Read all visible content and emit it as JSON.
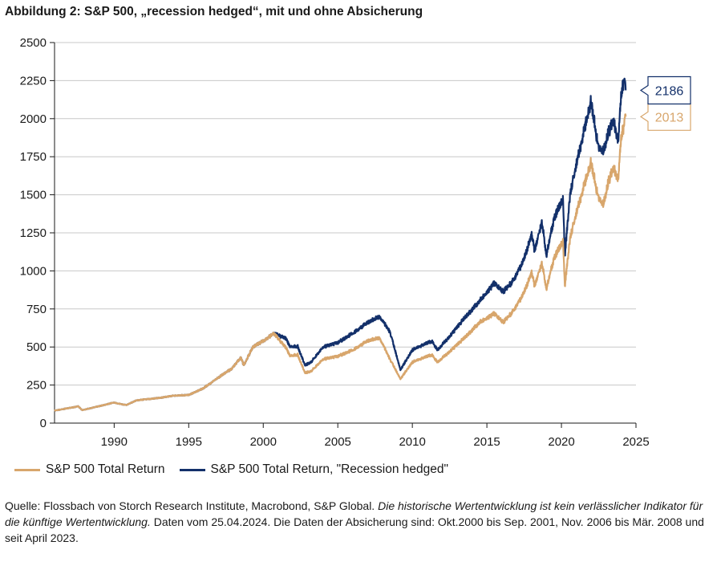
{
  "title": "Abbildung 2: S&P 500, „recession hedged“, mit und ohne Absicherung",
  "chart_data": {
    "type": "line",
    "title": "Abbildung 2: S&P 500, „recession hedged“, mit und ohne Absicherung",
    "xlabel": "",
    "ylabel": "",
    "xlim": [
      1986,
      2025
    ],
    "ylim": [
      0,
      2500
    ],
    "x_ticks": [
      1990,
      1995,
      2000,
      2005,
      2010,
      2015,
      2020,
      2025
    ],
    "y_ticks": [
      0,
      250,
      500,
      750,
      1000,
      1250,
      1500,
      1750,
      2000,
      2250,
      2500
    ],
    "grid": "horizontal",
    "legend": "bottom-left",
    "series": [
      {
        "name": "S&P 500 Total Return",
        "color": "#d8a66c",
        "end_label": "2013",
        "points": [
          [
            1986.0,
            82
          ],
          [
            1987.6,
            110
          ],
          [
            1987.85,
            85
          ],
          [
            1988.5,
            100
          ],
          [
            1990.0,
            135
          ],
          [
            1990.8,
            118
          ],
          [
            1991.5,
            150
          ],
          [
            1993.0,
            165
          ],
          [
            1994.0,
            180
          ],
          [
            1995.0,
            185
          ],
          [
            1996.0,
            230
          ],
          [
            1997.0,
            300
          ],
          [
            1997.9,
            360
          ],
          [
            1998.5,
            430
          ],
          [
            1998.7,
            380
          ],
          [
            1999.3,
            500
          ],
          [
            2000.0,
            540
          ],
          [
            2000.7,
            590
          ],
          [
            2001.5,
            500
          ],
          [
            2001.8,
            440
          ],
          [
            2002.3,
            450
          ],
          [
            2002.8,
            330
          ],
          [
            2003.2,
            340
          ],
          [
            2004.0,
            420
          ],
          [
            2005.0,
            440
          ],
          [
            2006.0,
            480
          ],
          [
            2007.0,
            540
          ],
          [
            2007.8,
            560
          ],
          [
            2008.5,
            420
          ],
          [
            2009.2,
            290
          ],
          [
            2010.0,
            400
          ],
          [
            2011.3,
            450
          ],
          [
            2011.7,
            400
          ],
          [
            2012.5,
            470
          ],
          [
            2013.5,
            560
          ],
          [
            2014.5,
            660
          ],
          [
            2015.5,
            720
          ],
          [
            2016.1,
            660
          ],
          [
            2016.8,
            740
          ],
          [
            2017.5,
            860
          ],
          [
            2018.0,
            990
          ],
          [
            2018.2,
            900
          ],
          [
            2018.7,
            1050
          ],
          [
            2018.98,
            880
          ],
          [
            2019.5,
            1080
          ],
          [
            2020.1,
            1200
          ],
          [
            2020.23,
            900
          ],
          [
            2020.6,
            1230
          ],
          [
            2021.0,
            1380
          ],
          [
            2021.5,
            1560
          ],
          [
            2021.98,
            1710
          ],
          [
            2022.5,
            1470
          ],
          [
            2022.8,
            1440
          ],
          [
            2023.2,
            1600
          ],
          [
            2023.5,
            1680
          ],
          [
            2023.8,
            1600
          ],
          [
            2024.0,
            1870
          ],
          [
            2024.31,
            2013
          ]
        ]
      },
      {
        "name": "S&P 500 Total Return, \"Recession hedged\"",
        "color": "#13306a",
        "end_label": "2186",
        "points": [
          [
            1986.0,
            82
          ],
          [
            1987.6,
            110
          ],
          [
            1987.85,
            85
          ],
          [
            1988.5,
            100
          ],
          [
            1990.0,
            135
          ],
          [
            1990.8,
            118
          ],
          [
            1991.5,
            150
          ],
          [
            1993.0,
            165
          ],
          [
            1994.0,
            180
          ],
          [
            1995.0,
            185
          ],
          [
            1996.0,
            230
          ],
          [
            1997.0,
            300
          ],
          [
            1997.9,
            360
          ],
          [
            1998.5,
            430
          ],
          [
            1998.7,
            380
          ],
          [
            1999.3,
            500
          ],
          [
            2000.0,
            540
          ],
          [
            2000.7,
            590
          ],
          [
            2001.5,
            560
          ],
          [
            2001.8,
            500
          ],
          [
            2002.3,
            505
          ],
          [
            2002.8,
            380
          ],
          [
            2003.2,
            400
          ],
          [
            2004.0,
            500
          ],
          [
            2005.0,
            530
          ],
          [
            2006.0,
            590
          ],
          [
            2007.0,
            660
          ],
          [
            2007.8,
            700
          ],
          [
            2008.5,
            600
          ],
          [
            2009.2,
            350
          ],
          [
            2010.0,
            480
          ],
          [
            2011.3,
            540
          ],
          [
            2011.7,
            480
          ],
          [
            2012.5,
            570
          ],
          [
            2013.5,
            690
          ],
          [
            2014.5,
            800
          ],
          [
            2015.5,
            920
          ],
          [
            2016.1,
            860
          ],
          [
            2016.8,
            940
          ],
          [
            2017.5,
            1080
          ],
          [
            2018.0,
            1240
          ],
          [
            2018.2,
            1130
          ],
          [
            2018.7,
            1320
          ],
          [
            2018.98,
            1100
          ],
          [
            2019.5,
            1340
          ],
          [
            2020.1,
            1480
          ],
          [
            2020.23,
            1100
          ],
          [
            2020.6,
            1520
          ],
          [
            2021.0,
            1700
          ],
          [
            2021.5,
            1920
          ],
          [
            2021.98,
            2110
          ],
          [
            2022.5,
            1800
          ],
          [
            2022.8,
            1790
          ],
          [
            2023.2,
            1920
          ],
          [
            2023.5,
            1990
          ],
          [
            2023.8,
            1850
          ],
          [
            2024.0,
            2150
          ],
          [
            2024.2,
            2260
          ],
          [
            2024.31,
            2186
          ]
        ]
      }
    ]
  },
  "legend": {
    "items": [
      {
        "label": "S&P 500 Total Return",
        "color": "#d8a66c"
      },
      {
        "label": "S&P 500 Total Return, \"Recession hedged\"",
        "color": "#13306a"
      }
    ]
  },
  "source": {
    "part1": "Quelle: Flossbach von Storch Research Institute, Macrobond, S&P Global. ",
    "italic": "Die historische Wertentwicklung ist kein verlässlicher Indikator für die künftige Wertentwicklung.",
    "part2": " Daten vom 25.04.2024. Die Daten der Absicherung sind: Okt.2000 bis Sep. 2001, Nov. 2006 bis Mär. 2008 und seit April 2023."
  }
}
